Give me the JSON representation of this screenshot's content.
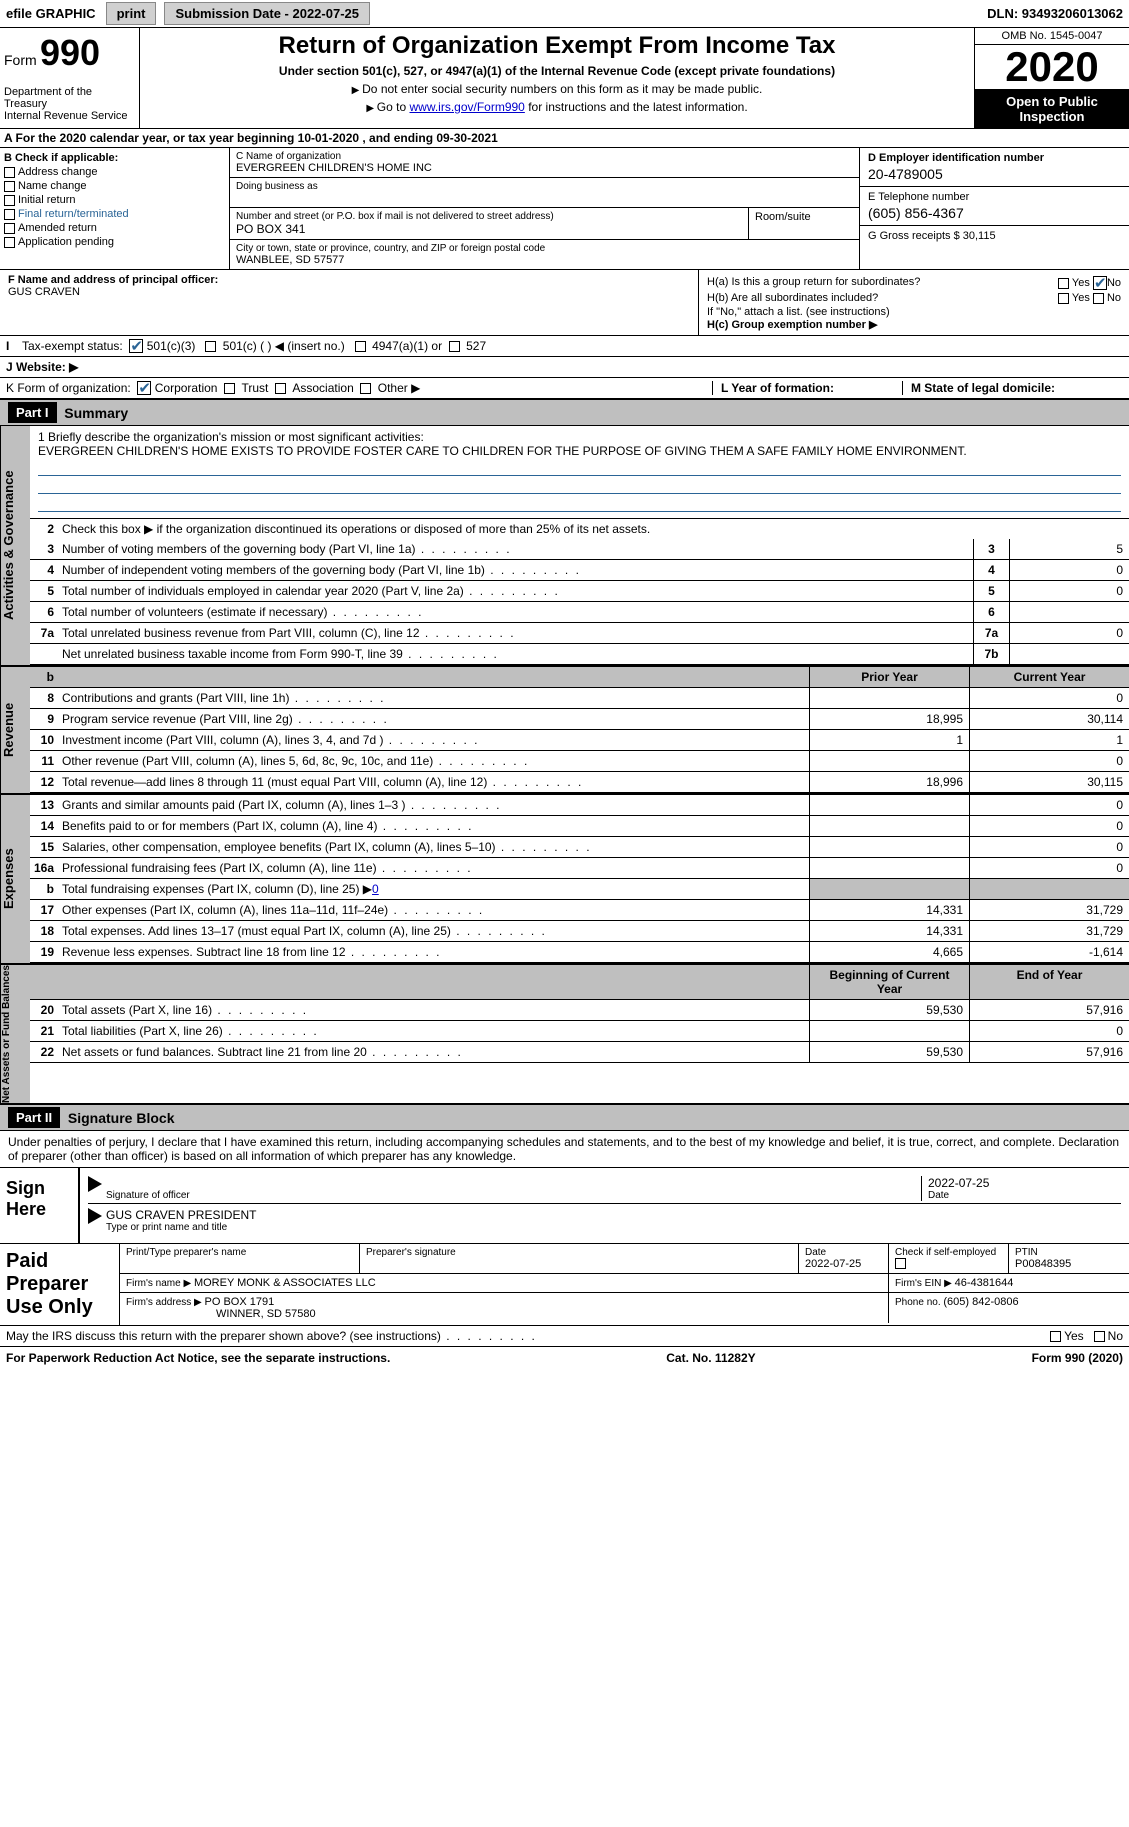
{
  "topbar": {
    "efile_label": "efile GRAPHIC",
    "print_label": "print",
    "submission_label": "Submission Date - 2022-07-25",
    "dln_label": "DLN: 93493206013062"
  },
  "header": {
    "form_label": "Form",
    "form_number": "990",
    "dept": "Department of the Treasury\nInternal Revenue Service",
    "title": "Return of Organization Exempt From Income Tax",
    "subtitle": "Under section 501(c), 527, or 4947(a)(1) of the Internal Revenue Code (except private foundations)",
    "note1": "Do not enter social security numbers on this form as it may be made public.",
    "note2_pre": "Go to ",
    "note2_link": "www.irs.gov/Form990",
    "note2_post": " for instructions and the latest information.",
    "omb": "OMB No. 1545-0047",
    "year": "2020",
    "inspect": "Open to Public Inspection"
  },
  "period": "A  For the 2020 calendar year, or tax year beginning 10-01-2020    , and ending 09-30-2021",
  "boxB": {
    "header": "B Check if applicable:",
    "items": [
      "Address change",
      "Name change",
      "Initial return",
      "Final return/terminated",
      "Amended return",
      "Application pending"
    ]
  },
  "boxC": {
    "label": "C Name of organization",
    "name": "EVERGREEN CHILDREN'S HOME INC",
    "dba_label": "Doing business as",
    "addr_label": "Number and street (or P.O. box if mail is not delivered to street address)",
    "suite_label": "Room/suite",
    "addr": "PO BOX 341",
    "city_label": "City or town, state or province, country, and ZIP or foreign postal code",
    "city": "WANBLEE, SD  57577"
  },
  "boxD": {
    "ein_label": "D Employer identification number",
    "ein": "20-4789005",
    "phone_label": "E Telephone number",
    "phone": "(605) 856-4367",
    "gross_label": "G Gross receipts $ 30,115"
  },
  "boxF": {
    "label": "F  Name and address of principal officer:",
    "name": "GUS CRAVEN"
  },
  "boxH": {
    "ha": "H(a)  Is this a group return for subordinates?",
    "hb": "H(b)  Are all subordinates included?",
    "hnote": "If \"No,\" attach a list. (see instructions)",
    "hc": "H(c)  Group exemption number ▶",
    "yes": "Yes",
    "no": "No"
  },
  "rowI": {
    "label": "Tax-exempt status:",
    "opt1": "501(c)(3)",
    "opt2": "501(c) (   ) ◀ (insert no.)",
    "opt3": "4947(a)(1) or",
    "opt4": "527"
  },
  "rowJ": "J   Website: ▶",
  "rowK": {
    "label": "K Form of organization:",
    "opts": [
      "Corporation",
      "Trust",
      "Association",
      "Other ▶"
    ],
    "L": "L Year of formation:",
    "M": "M State of legal domicile:"
  },
  "part1": {
    "num": "Part I",
    "title": "Summary",
    "l1": "1  Briefly describe the organization's mission or most significant activities:",
    "mission": "EVERGREEN CHILDREN'S HOME EXISTS TO PROVIDE FOSTER CARE TO CHILDREN FOR THE PURPOSE OF GIVING THEM A SAFE FAMILY HOME ENVIRONMENT.",
    "l2": "Check this box ▶       if the organization discontinued its operations or disposed of more than 25% of its net assets.",
    "section_gov": "Activities & Governance",
    "section_rev": "Revenue",
    "section_exp": "Expenses",
    "section_net": "Net Assets or Fund Balances",
    "col_prior": "Prior Year",
    "col_curr": "Current Year",
    "col_begin": "Beginning of Current Year",
    "col_end": "End of Year"
  },
  "gov_rows": [
    {
      "n": "3",
      "d": "Number of voting members of the governing body (Part VI, line 1a)",
      "rn": "3",
      "v": "5"
    },
    {
      "n": "4",
      "d": "Number of independent voting members of the governing body (Part VI, line 1b)",
      "rn": "4",
      "v": "0"
    },
    {
      "n": "5",
      "d": "Total number of individuals employed in calendar year 2020 (Part V, line 2a)",
      "rn": "5",
      "v": "0"
    },
    {
      "n": "6",
      "d": "Total number of volunteers (estimate if necessary)",
      "rn": "6",
      "v": ""
    },
    {
      "n": "7a",
      "d": "Total unrelated business revenue from Part VIII, column (C), line 12",
      "rn": "7a",
      "v": "0"
    },
    {
      "n": "",
      "d": "Net unrelated business taxable income from Form 990-T, line 39",
      "rn": "7b",
      "v": ""
    }
  ],
  "rev_rows": [
    {
      "n": "8",
      "d": "Contributions and grants (Part VIII, line 1h)",
      "p": "",
      "c": "0"
    },
    {
      "n": "9",
      "d": "Program service revenue (Part VIII, line 2g)",
      "p": "18,995",
      "c": "30,114"
    },
    {
      "n": "10",
      "d": "Investment income (Part VIII, column (A), lines 3, 4, and 7d )",
      "p": "1",
      "c": "1"
    },
    {
      "n": "11",
      "d": "Other revenue (Part VIII, column (A), lines 5, 6d, 8c, 9c, 10c, and 11e)",
      "p": "",
      "c": "0"
    },
    {
      "n": "12",
      "d": "Total revenue—add lines 8 through 11 (must equal Part VIII, column (A), line 12)",
      "p": "18,996",
      "c": "30,115"
    }
  ],
  "exp_rows": [
    {
      "n": "13",
      "d": "Grants and similar amounts paid (Part IX, column (A), lines 1–3 )",
      "p": "",
      "c": "0"
    },
    {
      "n": "14",
      "d": "Benefits paid to or for members (Part IX, column (A), line 4)",
      "p": "",
      "c": "0"
    },
    {
      "n": "15",
      "d": "Salaries, other compensation, employee benefits (Part IX, column (A), lines 5–10)",
      "p": "",
      "c": "0"
    },
    {
      "n": "16a",
      "d": "Professional fundraising fees (Part IX, column (A), line 11e)",
      "p": "",
      "c": "0"
    }
  ],
  "exp_b": {
    "n": "b",
    "d": "Total fundraising expenses (Part IX, column (D), line 25) ▶",
    "v": "0"
  },
  "exp_rows2": [
    {
      "n": "17",
      "d": "Other expenses (Part IX, column (A), lines 11a–11d, 11f–24e)",
      "p": "14,331",
      "c": "31,729"
    },
    {
      "n": "18",
      "d": "Total expenses. Add lines 13–17 (must equal Part IX, column (A), line 25)",
      "p": "14,331",
      "c": "31,729"
    },
    {
      "n": "19",
      "d": "Revenue less expenses. Subtract line 18 from line 12",
      "p": "4,665",
      "c": "-1,614"
    }
  ],
  "net_rows": [
    {
      "n": "20",
      "d": "Total assets (Part X, line 16)",
      "p": "59,530",
      "c": "57,916"
    },
    {
      "n": "21",
      "d": "Total liabilities (Part X, line 26)",
      "p": "",
      "c": "0"
    },
    {
      "n": "22",
      "d": "Net assets or fund balances. Subtract line 21 from line 20",
      "p": "59,530",
      "c": "57,916"
    }
  ],
  "part2": {
    "num": "Part II",
    "title": "Signature Block",
    "decl": "Under penalties of perjury, I declare that I have examined this return, including accompanying schedules and statements, and to the best of my knowledge and belief, it is true, correct, and complete. Declaration of preparer (other than officer) is based on all information of which preparer has any knowledge."
  },
  "sign": {
    "here": "Sign Here",
    "sig_of": "Signature of officer",
    "date": "Date",
    "date_val": "2022-07-25",
    "name": "GUS CRAVEN  PRESIDENT",
    "type": "Type or print name and title"
  },
  "prep": {
    "here": "Paid Preparer Use Only",
    "name_lbl": "Print/Type preparer's name",
    "sig_lbl": "Preparer's signature",
    "date_lbl": "Date",
    "date": "2022-07-25",
    "check_lbl": "Check       if self-employed",
    "ptin_lbl": "PTIN",
    "ptin": "P00848395",
    "firm_lbl": "Firm's name    ▶ ",
    "firm": "MOREY MONK & ASSOCIATES LLC",
    "ein_lbl": "Firm's EIN ▶ ",
    "ein": "46-4381644",
    "addr_lbl": "Firm's address ▶ ",
    "addr": "PO BOX 1791",
    "addr2": "WINNER, SD  57580",
    "phone_lbl": "Phone no. ",
    "phone": "(605) 842-0806"
  },
  "footer": {
    "discuss": "May the IRS discuss this return with the preparer shown above? (see instructions)",
    "yes": "Yes",
    "no": "No",
    "pra": "For Paperwork Reduction Act Notice, see the separate instructions.",
    "cat": "Cat. No. 11282Y",
    "form": "Form 990 (2020)"
  }
}
